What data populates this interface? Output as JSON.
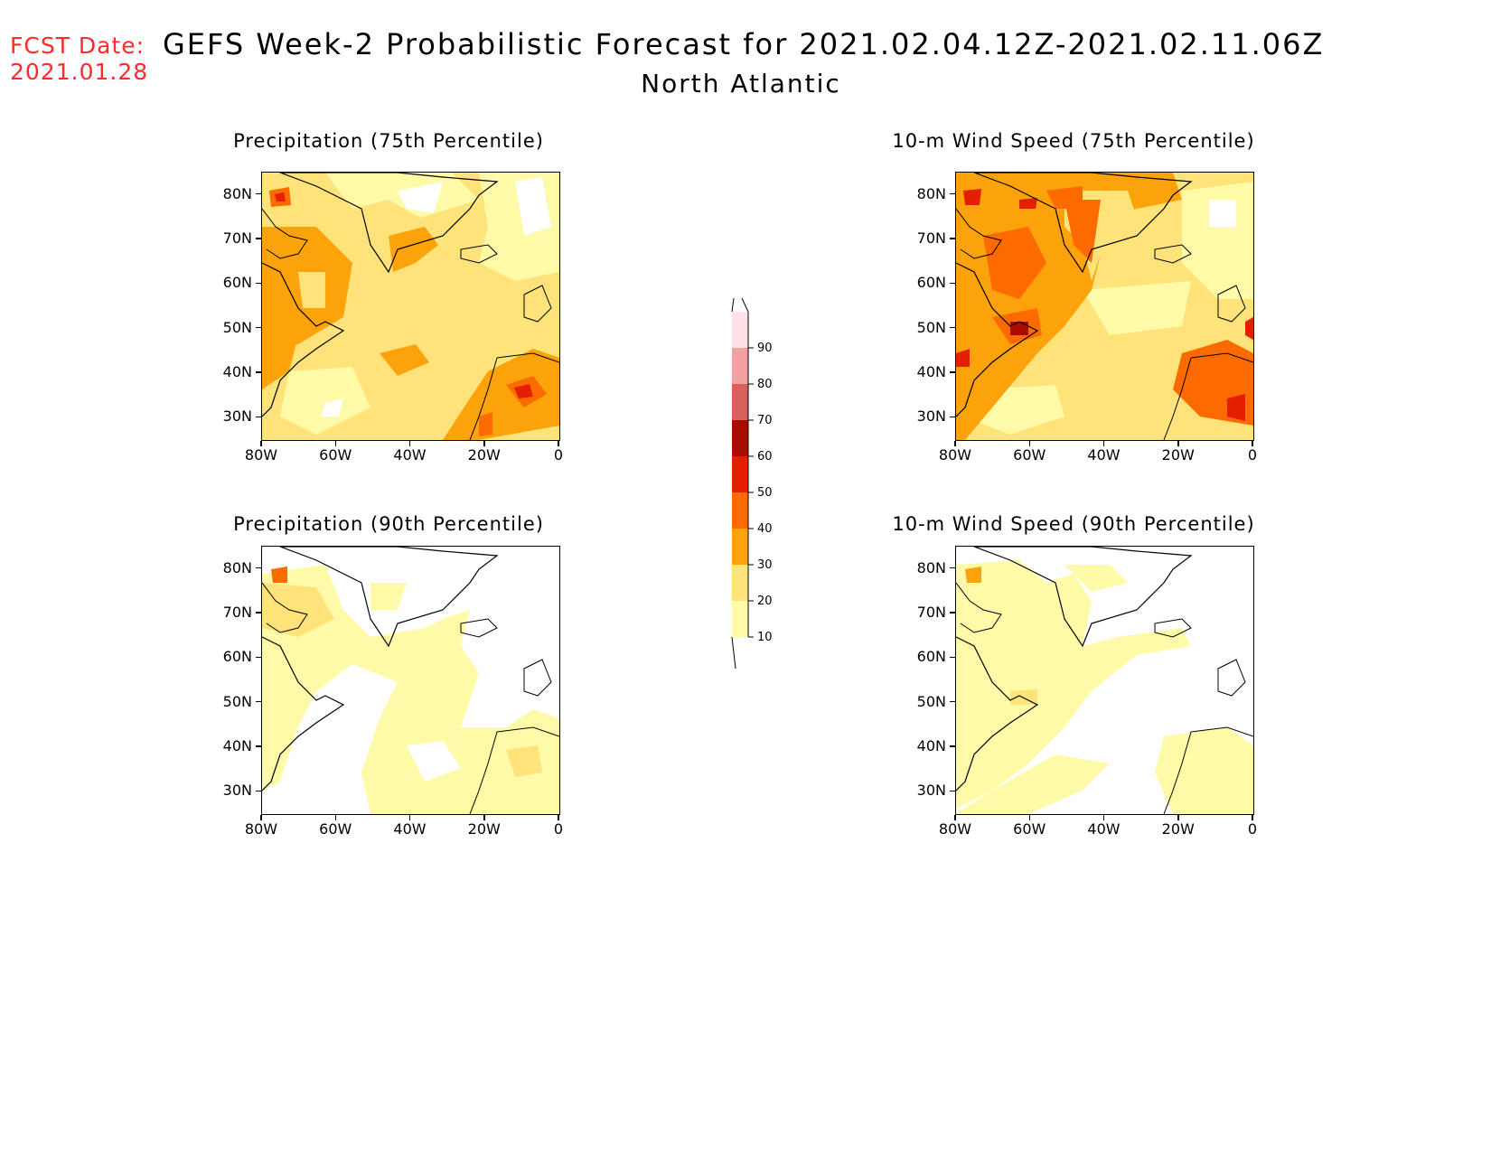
{
  "header": {
    "fcst_line1": "FCST Date:",
    "fcst_line2": "2021.01.28",
    "title": "GEFS Week-2 Probabilistic Forecast for 2021.02.04.12Z-2021.02.11.06Z",
    "region": "North Atlantic"
  },
  "panels": [
    {
      "title": "Precipitation (75th Percentile)"
    },
    {
      "title": "10-m Wind Speed (75th Percentile)"
    },
    {
      "title": "Precipitation (90th Percentile)"
    },
    {
      "title": "10-m Wind Speed (90th Percentile)"
    }
  ],
  "axes": {
    "lat_labels": [
      "80N",
      "70N",
      "60N",
      "50N",
      "40N",
      "30N"
    ],
    "lon_labels": [
      "80W",
      "60W",
      "40W",
      "20W",
      "0"
    ],
    "lat_values": [
      80,
      70,
      60,
      50,
      40,
      30
    ],
    "lon_values": [
      -80,
      -60,
      -40,
      -20,
      0
    ],
    "lat_range": [
      25,
      85
    ],
    "lon_range": [
      -80,
      0
    ]
  },
  "colorbar": {
    "levels": [
      "10",
      "20",
      "30",
      "40",
      "50",
      "60",
      "70",
      "80",
      "90"
    ],
    "colors": [
      "#fffaa8",
      "#fde37a",
      "#fca20a",
      "#fc6a00",
      "#e41f00",
      "#a80d00",
      "#d9605c",
      "#f4a0a0",
      "#fde2e6"
    ]
  }
}
